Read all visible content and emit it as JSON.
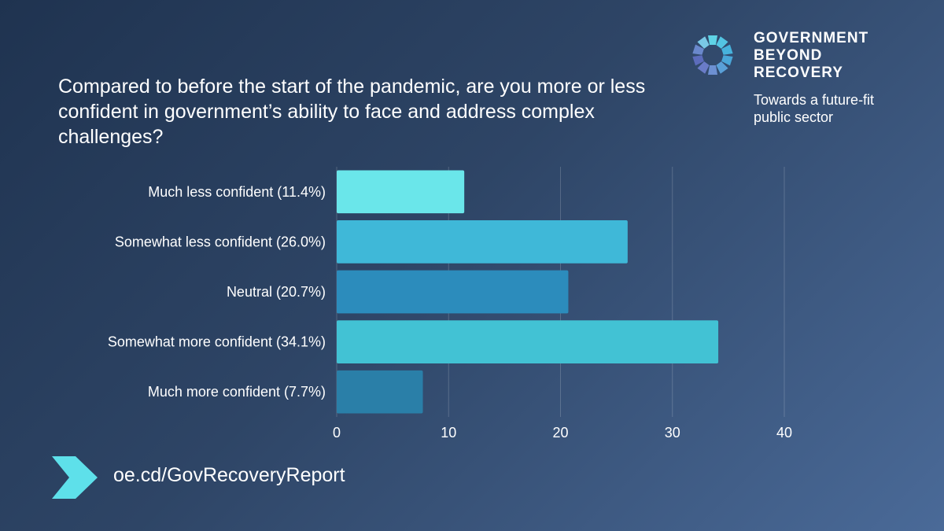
{
  "question": "Compared to before the start of the pandemic, are you more or less confident in government’s ability to face and address complex challenges?",
  "brand": {
    "name_lines": [
      "GOVERNMENT",
      "BEYOND",
      "RECOVERY"
    ],
    "tagline_lines": [
      "Towards a future-fit",
      "public sector"
    ],
    "logo_icon": "radial-petal-logo-icon"
  },
  "footer": {
    "link_text": "oe.cd/GovRecoveryReport",
    "arrow_icon": "chevron-right-icon"
  },
  "colors": {
    "bar_colors": [
      "#6ae6ea",
      "#3fb8d8",
      "#2c8cbc",
      "#42c2d4",
      "#2a7fa8"
    ],
    "accent": "#5ee0ea"
  },
  "chart_data": {
    "type": "bar",
    "orientation": "horizontal",
    "categories": [
      "Much less confident (11.4%)",
      "Somewhat less confident (26.0%)",
      "Neutral (20.7%)",
      "Somewhat more confident (34.1%)",
      "Much more confident (7.7%)"
    ],
    "values": [
      11.4,
      26.0,
      20.7,
      34.1,
      7.7
    ],
    "xlim": [
      0,
      40
    ],
    "xticks": [
      0,
      10,
      20,
      30,
      40
    ],
    "xlabel": "",
    "ylabel": "",
    "grid": true
  }
}
